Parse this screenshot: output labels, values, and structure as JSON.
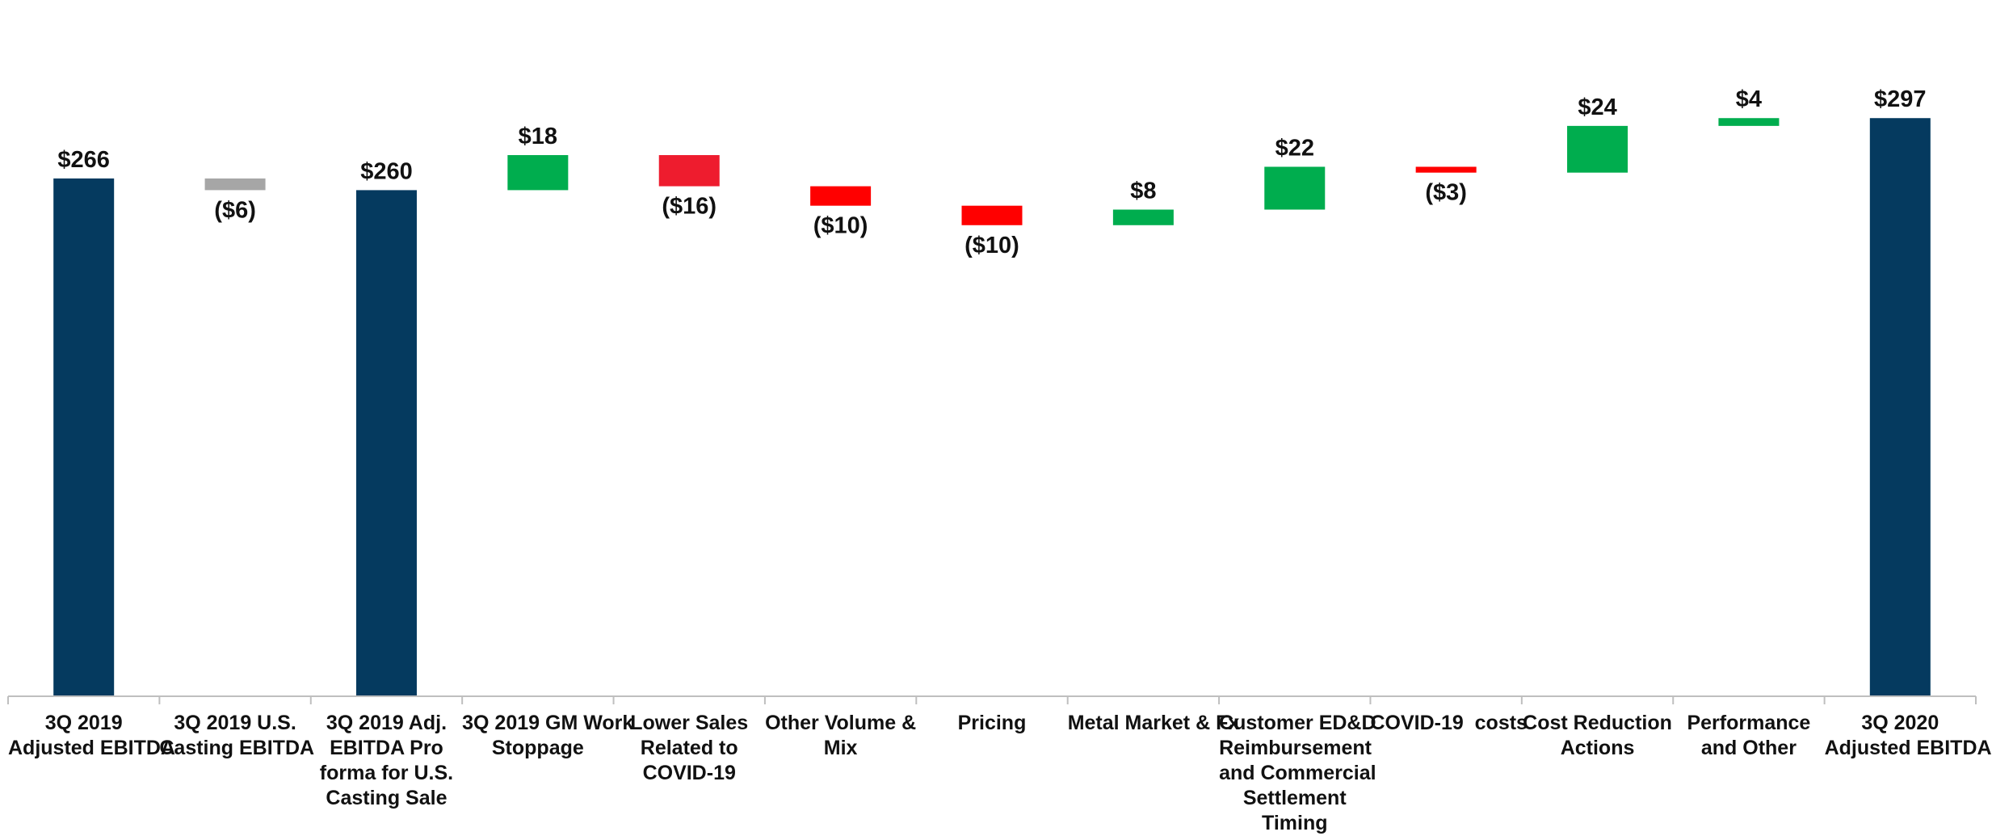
{
  "chart_data": {
    "type": "waterfall",
    "categories": [
      "3Q 2019 Adjusted EBITDA",
      "3Q 2019 U.S. Casting EBITDA",
      "3Q 2019 Adj. EBITDA Pro forma for U.S. Casting Sale",
      "3Q 2019 GM Work Stoppage",
      "Lower Sales Related to COVID-19",
      "Other Volume & Mix",
      "Pricing",
      "Metal Market & Fx",
      "Customer ED&D Reimbursement and Commercial Settlement Timing",
      "COVID-19  costs",
      "Cost Reduction Actions",
      "Performance and Other",
      "3Q 2020 Adjusted EBITDA"
    ],
    "category_lines": [
      [
        "3Q 2019",
        "Adjusted EBITDA"
      ],
      [
        "3Q 2019 U.S.",
        "Casting EBITDA"
      ],
      [
        "3Q 2019 Adj.",
        "EBITDA Pro",
        "forma for U.S.",
        "Casting Sale"
      ],
      [
        "3Q 2019 GM Work",
        "Stoppage"
      ],
      [
        "Lower Sales",
        "Related to",
        "COVID-19"
      ],
      [
        "Other Volume &",
        "Mix"
      ],
      [
        "Pricing"
      ],
      [
        "Metal Market & Fx"
      ],
      [
        "Customer ED&D",
        "Reimbursement",
        "and Commercial",
        "Settlement",
        "Timing"
      ],
      [
        "COVID-19  costs"
      ],
      [
        "Cost Reduction",
        "Actions"
      ],
      [
        "Performance",
        "and Other"
      ],
      [
        "3Q 2020",
        "Adjusted EBITDA"
      ]
    ],
    "values": [
      266,
      -6,
      260,
      18,
      -16,
      -10,
      -10,
      8,
      22,
      -3,
      24,
      4,
      297
    ],
    "bar_kinds": [
      "total",
      "delta",
      "total",
      "delta",
      "delta",
      "delta",
      "delta",
      "delta",
      "delta",
      "delta",
      "delta",
      "delta",
      "total"
    ],
    "labels": [
      "$266",
      "($6)",
      "$260",
      "$18",
      "($16)",
      "($10)",
      "($10)",
      "$8",
      "$22",
      "($3)",
      "$24",
      "$4",
      "$297"
    ],
    "colors": [
      "#053A5F",
      "#A6A6A6",
      "#053A5F",
      "#00AD4E",
      "#EE1C2E",
      "#FF0000",
      "#FF0000",
      "#00AD4E",
      "#00AD4E",
      "#FF0000",
      "#00AD4E",
      "#00AD4E",
      "#053A5F"
    ],
    "ylim": [
      0,
      325
    ],
    "title": "",
    "xlabel": "",
    "ylabel": "",
    "grid": false,
    "legend": "none"
  }
}
